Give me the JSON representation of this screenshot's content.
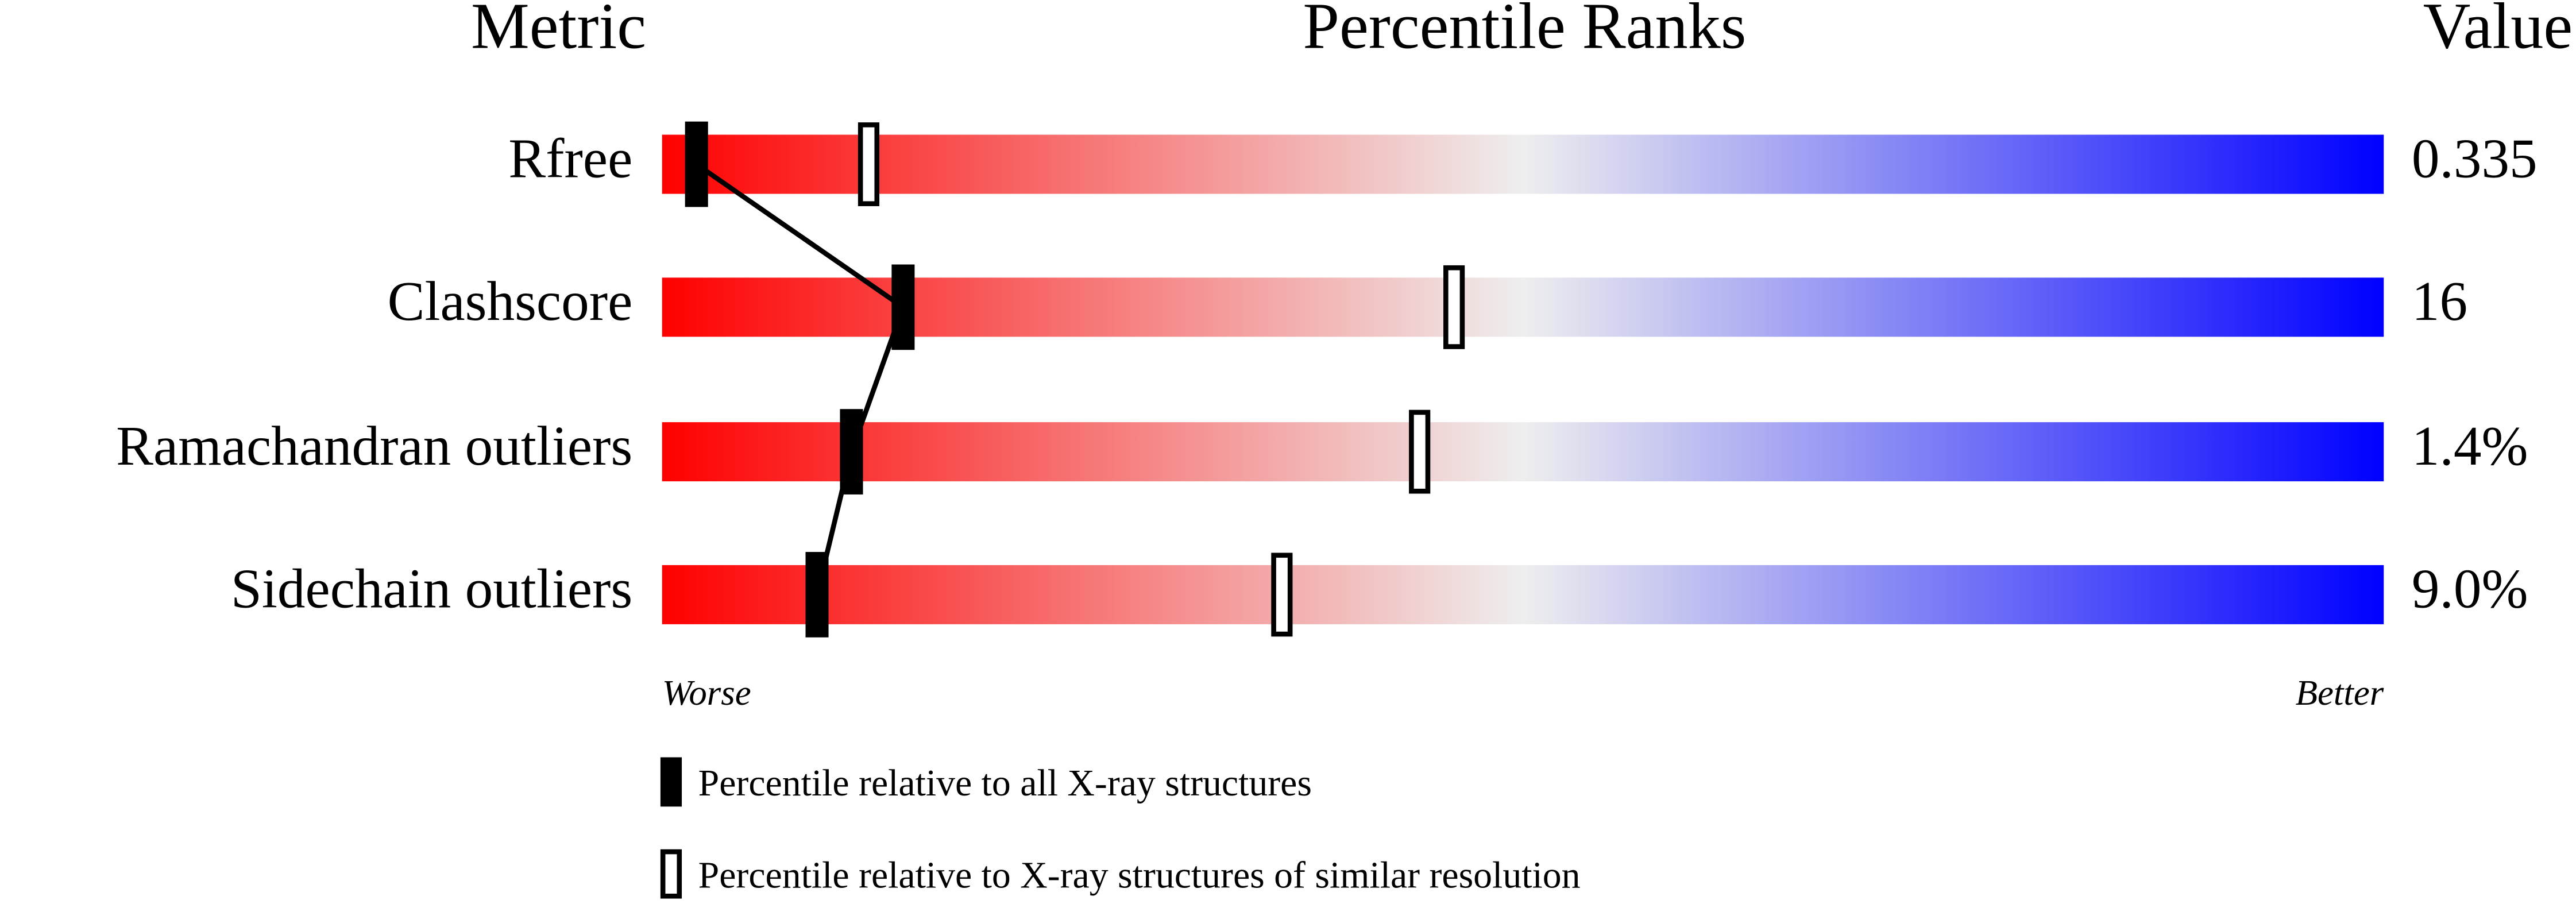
{
  "chart_data": {
    "type": "percentile",
    "headers": [
      "Metric",
      "Percentile Ranks",
      "Value"
    ],
    "categories": [
      "Rfree",
      "Clashscore",
      "Ramachandran outliers",
      "Sidechain outliers"
    ],
    "metric_values": [
      "0.335",
      "16",
      "1.4%",
      "9.0%"
    ],
    "series": [
      {
        "name": "Percentile relative to all X-ray structures",
        "color": "#000000",
        "values": [
          2,
          14,
          11,
          9
        ]
      },
      {
        "name": "Percentile relative to X-ray structures of similar resolution",
        "color": "#ffffff",
        "values": [
          12,
          46,
          44,
          36
        ]
      }
    ],
    "xlim": [
      0,
      100
    ],
    "axis_labels": [
      "Worse",
      "Better"
    ],
    "gradient": [
      "#ff0000",
      "#eeeeee",
      "#0000ff"
    ]
  }
}
